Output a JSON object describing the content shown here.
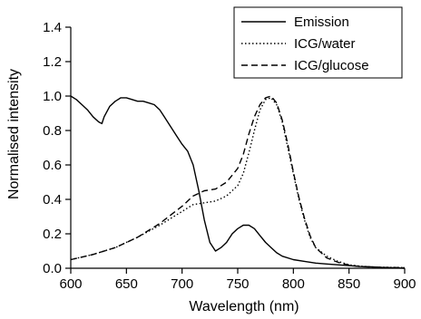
{
  "chart_data": {
    "type": "line",
    "xlabel": "Wavelength (nm)",
    "ylabel": "Normalised intensity",
    "xlim": [
      600,
      900
    ],
    "ylim": [
      0,
      1.4
    ],
    "xticks": [
      600,
      650,
      700,
      750,
      800,
      850,
      900
    ],
    "yticks": [
      0.0,
      0.2,
      0.4,
      0.6,
      0.8,
      1.0,
      1.2,
      1.4
    ],
    "xtick_labels": [
      "600",
      "650",
      "700",
      "750",
      "800",
      "850",
      "900"
    ],
    "ytick_labels": [
      "0.0",
      "0.2",
      "0.4",
      "0.6",
      "0.8",
      "1.0",
      "1.2",
      "1.4"
    ],
    "legend_position": "top-right",
    "grid": false,
    "series": [
      {
        "name": "Emission",
        "dash": "solid",
        "x": [
          600,
          605,
          610,
          615,
          620,
          625,
          628,
          630,
          635,
          640,
          645,
          650,
          655,
          660,
          665,
          670,
          675,
          680,
          685,
          690,
          695,
          700,
          705,
          710,
          715,
          720,
          725,
          730,
          735,
          740,
          745,
          750,
          755,
          760,
          765,
          770,
          775,
          780,
          785,
          790,
          800,
          810,
          820,
          830,
          840,
          850,
          860,
          870,
          880,
          890,
          900
        ],
        "y": [
          1.0,
          0.98,
          0.95,
          0.92,
          0.88,
          0.85,
          0.84,
          0.88,
          0.94,
          0.97,
          0.99,
          0.99,
          0.98,
          0.97,
          0.97,
          0.96,
          0.95,
          0.92,
          0.87,
          0.82,
          0.77,
          0.72,
          0.68,
          0.6,
          0.45,
          0.28,
          0.15,
          0.1,
          0.12,
          0.15,
          0.2,
          0.23,
          0.25,
          0.25,
          0.23,
          0.19,
          0.15,
          0.12,
          0.09,
          0.07,
          0.05,
          0.04,
          0.03,
          0.025,
          0.02,
          0.015,
          0.01,
          0.008,
          0.005,
          0.003,
          0.0
        ]
      },
      {
        "name": "ICG/water",
        "dash": "dotted",
        "x": [
          600,
          620,
          640,
          660,
          680,
          690,
          700,
          705,
          710,
          720,
          730,
          740,
          750,
          755,
          760,
          765,
          770,
          775,
          780,
          785,
          790,
          795,
          800,
          805,
          810,
          815,
          820,
          830,
          840,
          850,
          860,
          870,
          880,
          890,
          900
        ],
        "y": [
          0.05,
          0.08,
          0.12,
          0.18,
          0.25,
          0.29,
          0.33,
          0.35,
          0.37,
          0.38,
          0.39,
          0.42,
          0.48,
          0.55,
          0.67,
          0.8,
          0.92,
          0.98,
          0.99,
          0.95,
          0.85,
          0.7,
          0.55,
          0.4,
          0.28,
          0.18,
          0.12,
          0.07,
          0.04,
          0.02,
          0.012,
          0.008,
          0.006,
          0.005,
          0.004
        ]
      },
      {
        "name": "ICG/glucose",
        "dash": "dashed",
        "x": [
          600,
          620,
          640,
          660,
          680,
          690,
          700,
          705,
          710,
          720,
          730,
          740,
          750,
          755,
          760,
          765,
          770,
          775,
          780,
          785,
          790,
          795,
          800,
          805,
          810,
          815,
          820,
          830,
          840,
          850,
          860,
          870,
          880,
          890,
          900
        ],
        "y": [
          0.05,
          0.08,
          0.12,
          0.18,
          0.26,
          0.31,
          0.36,
          0.39,
          0.42,
          0.45,
          0.46,
          0.5,
          0.58,
          0.66,
          0.78,
          0.88,
          0.95,
          0.99,
          1.0,
          0.96,
          0.86,
          0.72,
          0.56,
          0.41,
          0.29,
          0.19,
          0.12,
          0.06,
          0.035,
          0.018,
          0.01,
          0.007,
          0.005,
          0.004,
          0.003
        ]
      }
    ]
  }
}
